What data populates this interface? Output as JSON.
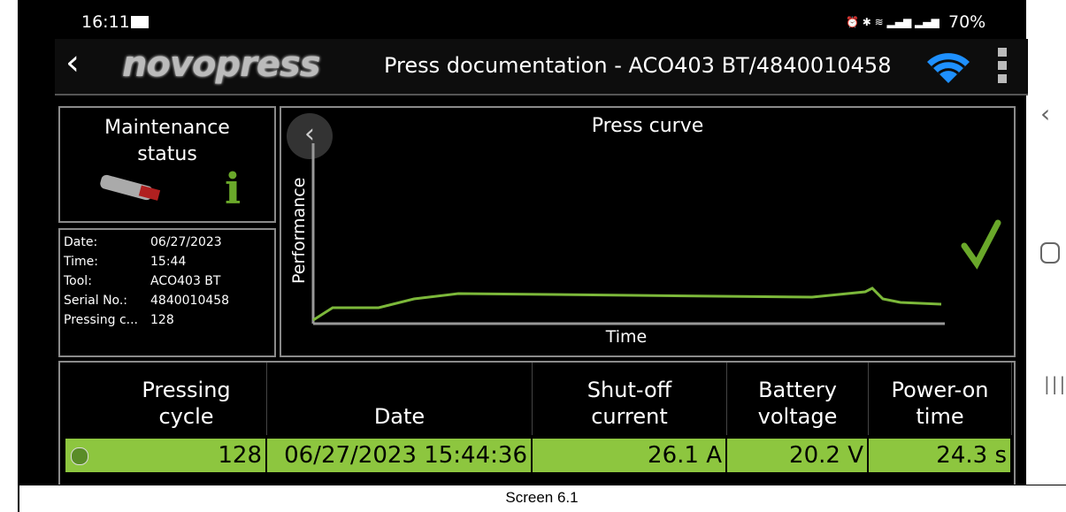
{
  "status_bar": {
    "time": "16:11",
    "battery": "70%"
  },
  "header": {
    "logo": "novopress",
    "title": "Press documentation - ACO403 BT/4840010458"
  },
  "maintenance": {
    "title": "Maintenance status",
    "icon": "i"
  },
  "info": {
    "rows": [
      [
        "Date:",
        "06/27/2023"
      ],
      [
        "Time:",
        "15:44"
      ],
      [
        "Tool:",
        "ACO403 BT"
      ],
      [
        "Serial No.:",
        "4840010458"
      ],
      [
        "Pressing c...",
        "128"
      ]
    ]
  },
  "press_curve": {
    "title": "Press curve",
    "y_label": "Performance",
    "x_label": "Time"
  },
  "table": {
    "headers": [
      "Pressing cycle",
      "Date",
      "Shut-off current",
      "Battery voltage",
      "Power-on time"
    ],
    "rows": [
      [
        "128",
        "06/27/2023 15:44:36",
        "26.1 A",
        "20.2 V",
        "24.3 s"
      ]
    ]
  },
  "caption": "Screen 6.1"
}
